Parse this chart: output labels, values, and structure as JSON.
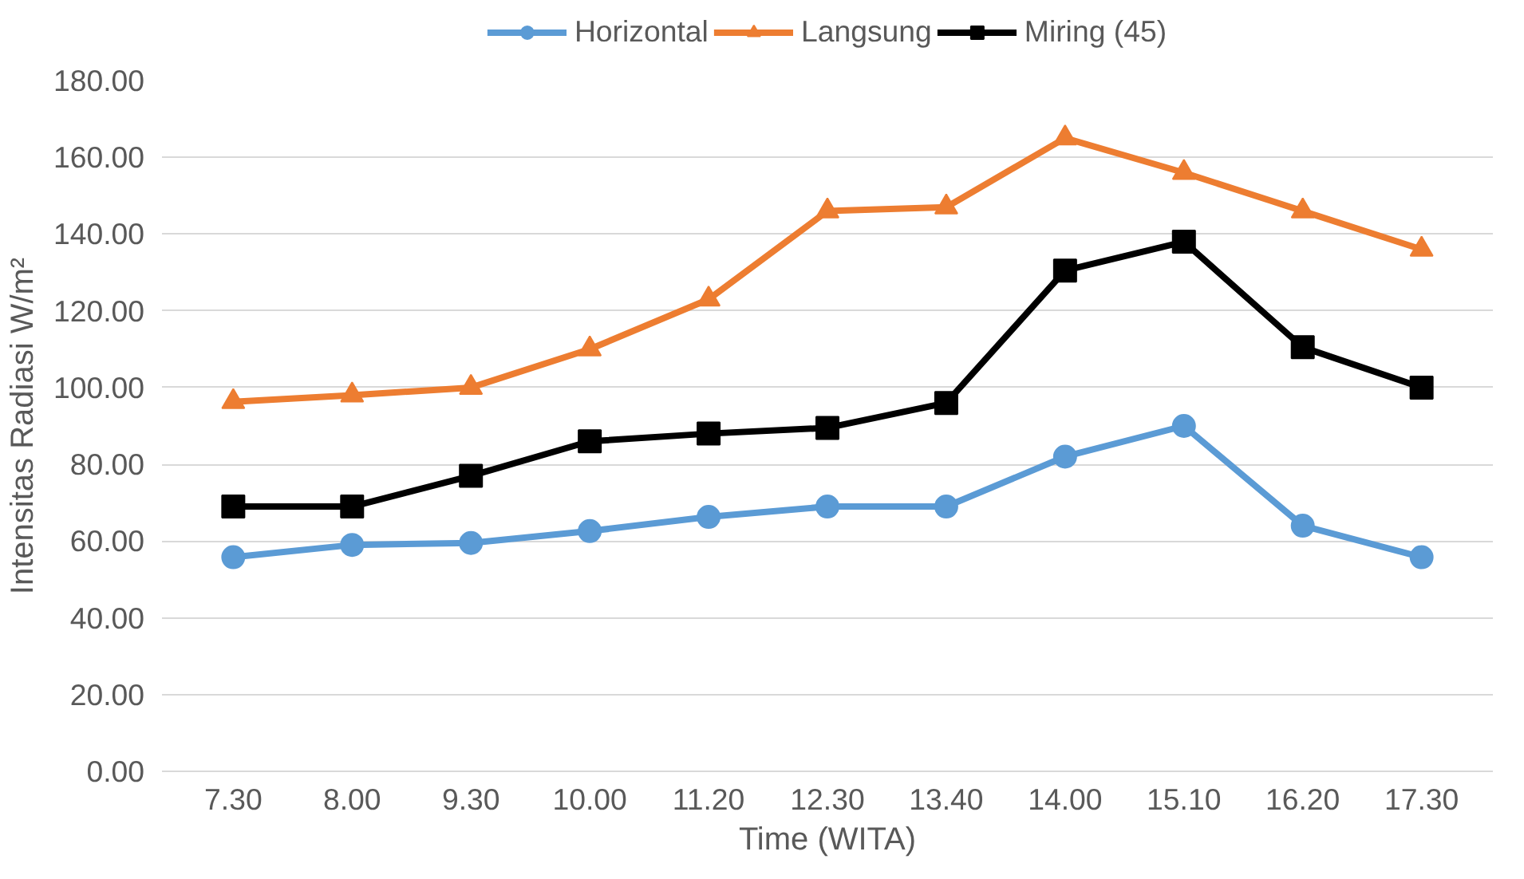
{
  "chart_data": {
    "type": "line",
    "categories": [
      "7.30",
      "8.00",
      "9.30",
      "10.00",
      "11.20",
      "12.30",
      "13.40",
      "14.00",
      "15.10",
      "16.20",
      "17.30"
    ],
    "series": [
      {
        "name": "Horizontal",
        "color": "#5b9bd5",
        "marker": "circle",
        "values": [
          55.8,
          59,
          59.5,
          62.6,
          66.3,
          69,
          69,
          82,
          90,
          64,
          55.8
        ]
      },
      {
        "name": "Langsung",
        "color": "#ed7d31",
        "marker": "triangle",
        "values": [
          96.3,
          98,
          100,
          110,
          123,
          146,
          147,
          165,
          156,
          146,
          136
        ]
      },
      {
        "name": "Miring (45)",
        "color": "#000000",
        "marker": "square",
        "values": [
          69,
          69,
          77,
          86,
          88,
          89.5,
          96,
          130.5,
          138,
          110.5,
          100
        ]
      }
    ],
    "ylim": [
      0,
      180
    ],
    "yticks": [
      {
        "value": 0,
        "label": "0.00"
      },
      {
        "value": 20,
        "label": "20.00"
      },
      {
        "value": 40,
        "label": "40.00"
      },
      {
        "value": 60,
        "label": "60.00"
      },
      {
        "value": 80,
        "label": "80.00"
      },
      {
        "value": 100,
        "label": "100.00"
      },
      {
        "value": 120,
        "label": "120.00"
      },
      {
        "value": 140,
        "label": "140.00"
      },
      {
        "value": 160,
        "label": "160.00"
      },
      {
        "value": 180,
        "label": "180.00"
      }
    ],
    "xlabel": "Time (WITA)",
    "ylabel": "Intensitas Radiasi W/m²",
    "grid": "y",
    "legend": "top",
    "line_style": "solid"
  }
}
